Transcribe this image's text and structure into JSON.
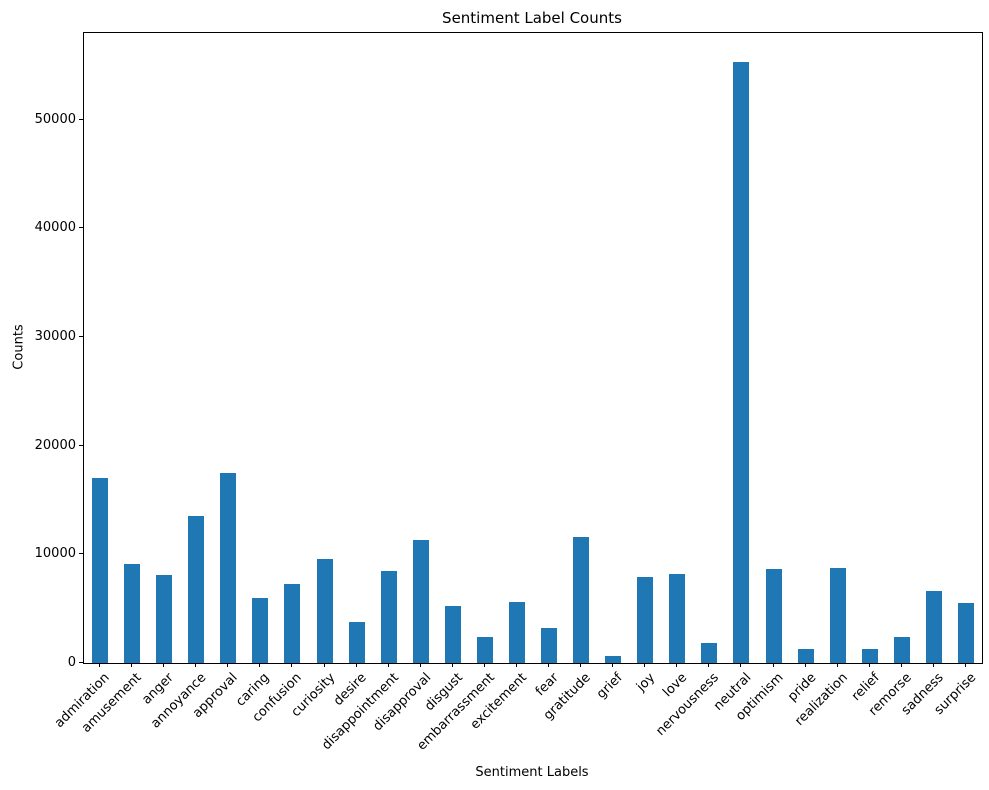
{
  "title": "Sentiment Label Counts",
  "chart_data": {
    "type": "bar",
    "title": "Sentiment Label Counts",
    "xlabel": "Sentiment Labels",
    "ylabel": "Counts",
    "categories": [
      "admiration",
      "amusement",
      "anger",
      "annoyance",
      "approval",
      "caring",
      "confusion",
      "curiosity",
      "desire",
      "disappointment",
      "disapproval",
      "disgust",
      "embarrassment",
      "excitement",
      "fear",
      "gratitude",
      "grief",
      "joy",
      "love",
      "nervousness",
      "neutral",
      "optimism",
      "pride",
      "realization",
      "relief",
      "remorse",
      "sadness",
      "surprise"
    ],
    "values": [
      17050,
      9150,
      8100,
      13550,
      17500,
      5950,
      7300,
      9550,
      3750,
      8450,
      11350,
      5200,
      2400,
      5600,
      3200,
      11550,
      600,
      7950,
      8200,
      1800,
      55300,
      8650,
      1300,
      8700,
      1300,
      2400,
      6650,
      5500
    ],
    "yticks": [
      0,
      10000,
      20000,
      30000,
      40000,
      50000
    ],
    "ylim": [
      0,
      57980
    ],
    "bar_color": "#1f77b4",
    "grid": false,
    "legend": "none",
    "x_tick_rotation_deg": 45
  }
}
